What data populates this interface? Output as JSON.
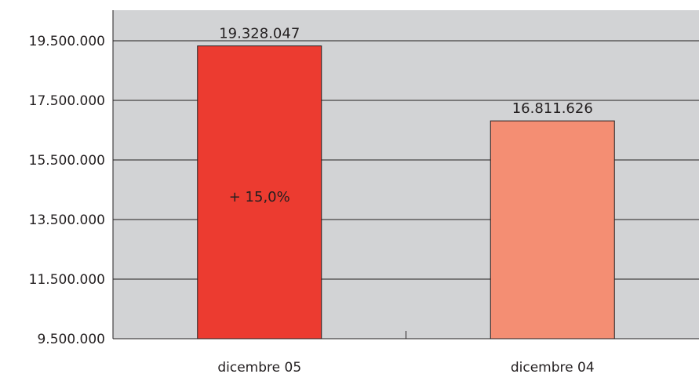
{
  "chart_data": {
    "type": "bar",
    "categories": [
      "dicembre 05",
      "dicembre 04"
    ],
    "values": [
      19328047,
      16811626
    ],
    "value_labels": [
      "19.328.047",
      "16.811.626"
    ],
    "bar_colors": [
      "#ec3b30",
      "#f48e73"
    ],
    "annotation": "+ 15,0%",
    "ylim": [
      9500000,
      20000000
    ],
    "yticks": [
      9500000,
      11500000,
      13500000,
      15500000,
      17500000,
      19500000
    ],
    "ytick_labels": [
      "9.500.000",
      "11.500.000",
      "13.500.000",
      "15.500.000",
      "17.500.000",
      "19.500.000"
    ],
    "plot_background": "#d2d3d5",
    "grid": true,
    "legend": "none"
  }
}
